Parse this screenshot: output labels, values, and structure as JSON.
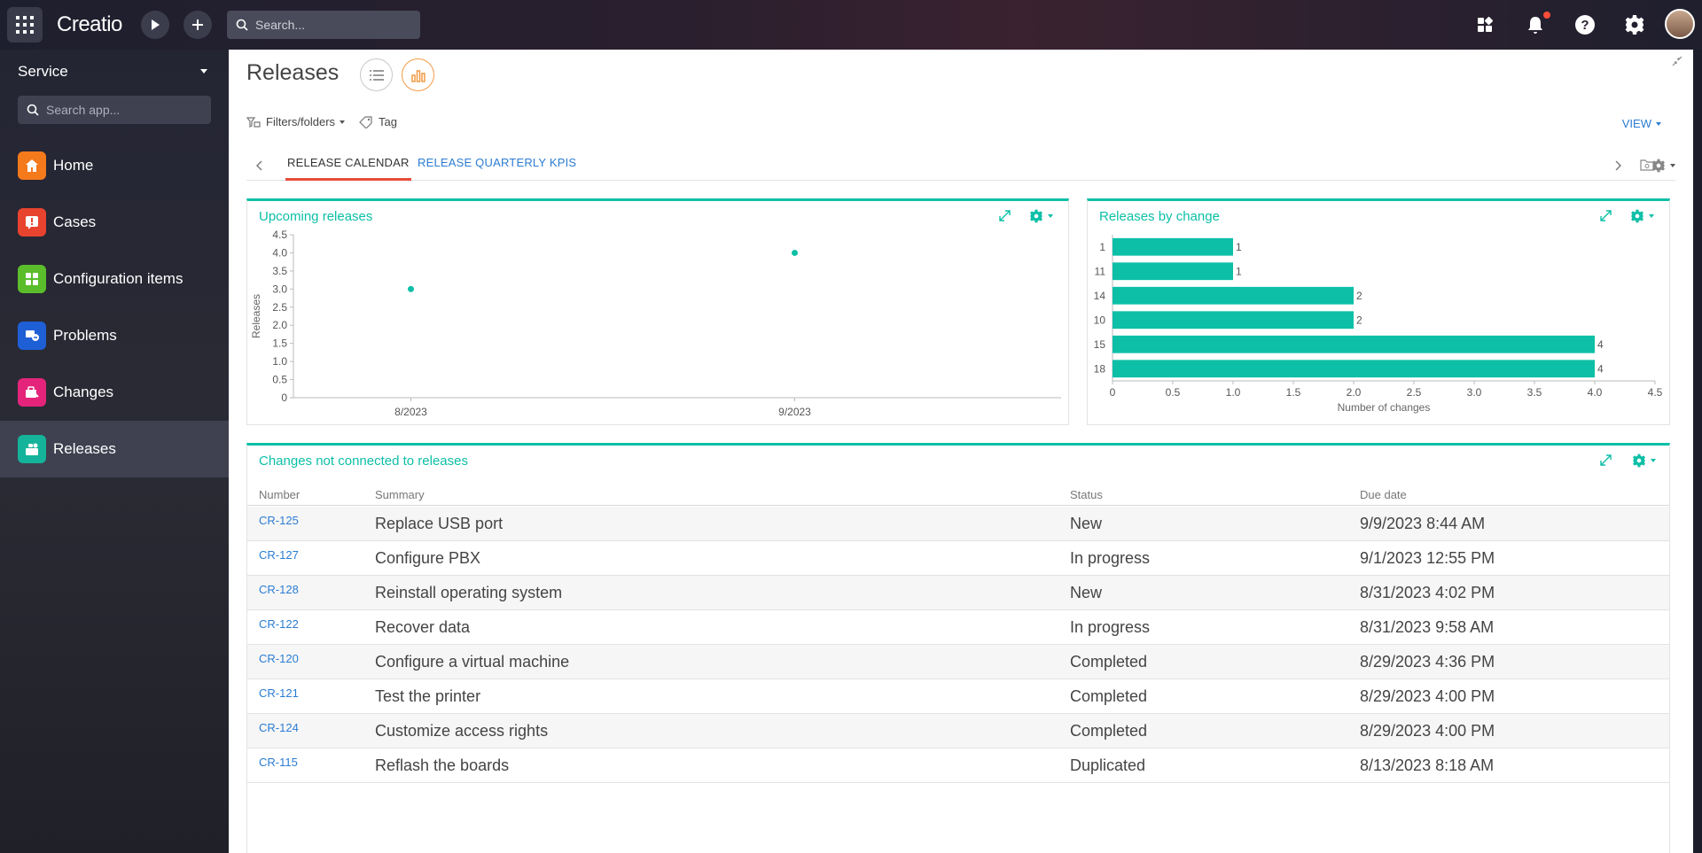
{
  "topbar": {
    "logo": "Creatio",
    "search_placeholder": "Search..."
  },
  "sidebar": {
    "workspace": "Service",
    "search_placeholder": "Search app...",
    "items": [
      {
        "label": "Home",
        "color": "#f57a1c"
      },
      {
        "label": "Cases",
        "color": "#e8432e"
      },
      {
        "label": "Configuration items",
        "color": "#5bbd2b"
      },
      {
        "label": "Problems",
        "color": "#1f5fd6"
      },
      {
        "label": "Changes",
        "color": "#e4247a"
      },
      {
        "label": "Releases",
        "color": "#14b39a"
      }
    ]
  },
  "page": {
    "title": "Releases",
    "filters_label": "Filters/folders",
    "tag_label": "Tag",
    "view_label": "VIEW",
    "tabs": [
      "RELEASE CALENDAR",
      "RELEASE QUARTERLY KPIS"
    ]
  },
  "widgets": {
    "upcoming_title": "Upcoming releases",
    "bychange_title": "Releases by change",
    "changes_title": "Changes not connected to releases"
  },
  "chart_data": [
    {
      "type": "scatter",
      "title": "Upcoming releases",
      "ylabel": "Releases",
      "x": [
        "8/2023",
        "9/2023"
      ],
      "y": [
        3,
        4
      ],
      "ylim": [
        0,
        4.5
      ],
      "yticks": [
        "0",
        "0.5",
        "1.0",
        "1.5",
        "2.0",
        "2.5",
        "3.0",
        "3.5",
        "4.0",
        "4.5"
      ],
      "color": "#0dbfa7"
    },
    {
      "type": "bar",
      "orientation": "horizontal",
      "title": "Releases by change",
      "xlabel": "Number of changes",
      "categories": [
        "1",
        "11",
        "14",
        "10",
        "15",
        "18"
      ],
      "values": [
        1,
        1,
        2,
        2,
        4,
        4
      ],
      "xlim": [
        0,
        4.5
      ],
      "xticks": [
        "0",
        "0.5",
        "1.0",
        "1.5",
        "2.0",
        "2.5",
        "3.0",
        "3.5",
        "4.0",
        "4.5"
      ],
      "color": "#0dbfa7"
    }
  ],
  "table": {
    "headers": [
      "Number",
      "Summary",
      "Status",
      "Due date"
    ],
    "rows": [
      {
        "number": "CR-125",
        "summary": "Replace USB port",
        "status": "New",
        "due": "9/9/2023 8:44 AM"
      },
      {
        "number": "CR-127",
        "summary": "Configure PBX",
        "status": "In progress",
        "due": "9/1/2023 12:55 PM"
      },
      {
        "number": "CR-128",
        "summary": "Reinstall operating system",
        "status": "New",
        "due": "8/31/2023 4:02 PM"
      },
      {
        "number": "CR-122",
        "summary": "Recover data",
        "status": "In progress",
        "due": "8/31/2023 9:58 AM"
      },
      {
        "number": "CR-120",
        "summary": "Configure a virtual machine",
        "status": "Completed",
        "due": "8/29/2023 4:36 PM"
      },
      {
        "number": "CR-121",
        "summary": "Test the printer",
        "status": "Completed",
        "due": "8/29/2023 4:00 PM"
      },
      {
        "number": "CR-124",
        "summary": "Customize access rights",
        "status": "Completed",
        "due": "8/29/2023 4:00 PM"
      },
      {
        "number": "CR-115",
        "summary": "Reflash the boards",
        "status": "Duplicated",
        "due": "8/13/2023 8:18 AM"
      }
    ]
  }
}
